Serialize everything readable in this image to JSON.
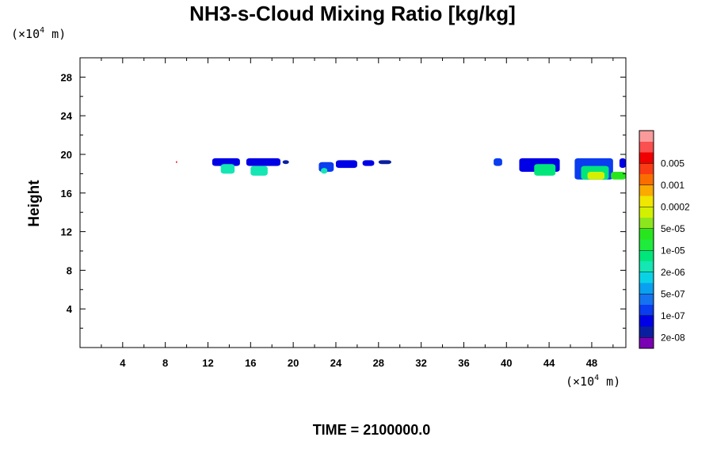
{
  "chart_data": {
    "type": "heatmap",
    "title": "NH3-s-Cloud Mixing Ratio [kg/kg]",
    "ylabel": "Height",
    "y_unit": {
      "prefix": "(×10",
      "exponent": "4",
      "suffix": " m)"
    },
    "x_unit": {
      "prefix": "(×10",
      "exponent": "4",
      "suffix": " m)"
    },
    "xlim": [
      0,
      51.2
    ],
    "ylim": [
      0,
      30
    ],
    "x_ticks": [
      4,
      8,
      12,
      16,
      20,
      24,
      28,
      32,
      36,
      40,
      44,
      48
    ],
    "y_ticks": [
      4,
      8,
      12,
      16,
      20,
      24,
      28
    ],
    "colorbar": {
      "colors": [
        "#7a00b4",
        "#0a1fa0",
        "#0000e6",
        "#0a3cf0",
        "#1473f0",
        "#0aa0f0",
        "#0ad2e6",
        "#14e6b4",
        "#00e67a",
        "#1eeb3c",
        "#28e61e",
        "#8ce61e",
        "#d2f000",
        "#f0e600",
        "#faaa00",
        "#fa6e00",
        "#fa3c14",
        "#f00000",
        "#fa5050",
        "#fa9b9b"
      ],
      "labels": [
        "2e-08",
        "1e-07",
        "5e-07",
        "2e-06",
        "1e-05",
        "5e-05",
        "0.0002",
        "0.001",
        "0.005"
      ]
    },
    "cloud_regions": [
      {
        "x": [
          12.4,
          15.0
        ],
        "y": [
          18.8,
          19.6
        ],
        "level": 2
      },
      {
        "x": [
          13.2,
          14.5
        ],
        "y": [
          18.0,
          19.0
        ],
        "level": 7
      },
      {
        "x": [
          15.6,
          18.8
        ],
        "y": [
          18.8,
          19.6
        ],
        "level": 2
      },
      {
        "x": [
          16.0,
          17.6
        ],
        "y": [
          17.8,
          18.8
        ],
        "level": 7
      },
      {
        "x": [
          19.0,
          19.6
        ],
        "y": [
          19.0,
          19.4
        ],
        "level": 1
      },
      {
        "x": [
          22.4,
          23.8
        ],
        "y": [
          18.2,
          19.2
        ],
        "level": 3
      },
      {
        "x": [
          22.6,
          23.2
        ],
        "y": [
          18.0,
          18.6
        ],
        "level": 7
      },
      {
        "x": [
          24.0,
          26.0
        ],
        "y": [
          18.6,
          19.4
        ],
        "level": 2
      },
      {
        "x": [
          26.5,
          27.6
        ],
        "y": [
          18.8,
          19.4
        ],
        "level": 2
      },
      {
        "x": [
          28.0,
          29.2
        ],
        "y": [
          19.0,
          19.4
        ],
        "level": 1
      },
      {
        "x": [
          38.8,
          39.6
        ],
        "y": [
          18.8,
          19.6
        ],
        "level": 3
      },
      {
        "x": [
          41.2,
          45.0
        ],
        "y": [
          18.2,
          19.6
        ],
        "level": 2
      },
      {
        "x": [
          42.6,
          44.6
        ],
        "y": [
          17.8,
          19.0
        ],
        "level": 8
      },
      {
        "x": [
          46.4,
          50.0
        ],
        "y": [
          17.4,
          19.6
        ],
        "level": 3
      },
      {
        "x": [
          47.0,
          49.6
        ],
        "y": [
          17.4,
          18.8
        ],
        "level": 8
      },
      {
        "x": [
          47.6,
          49.2
        ],
        "y": [
          17.4,
          18.2
        ],
        "level": 12
      },
      {
        "x": [
          49.8,
          51.2
        ],
        "y": [
          17.4,
          18.2
        ],
        "level": 10
      },
      {
        "x": [
          50.6,
          51.2
        ],
        "y": [
          18.6,
          19.6
        ],
        "level": 2
      },
      {
        "x": [
          9.0,
          9.1
        ],
        "y": [
          19.1,
          19.3
        ],
        "level": 17
      }
    ],
    "time_label": "TIME = 2100000.0"
  }
}
